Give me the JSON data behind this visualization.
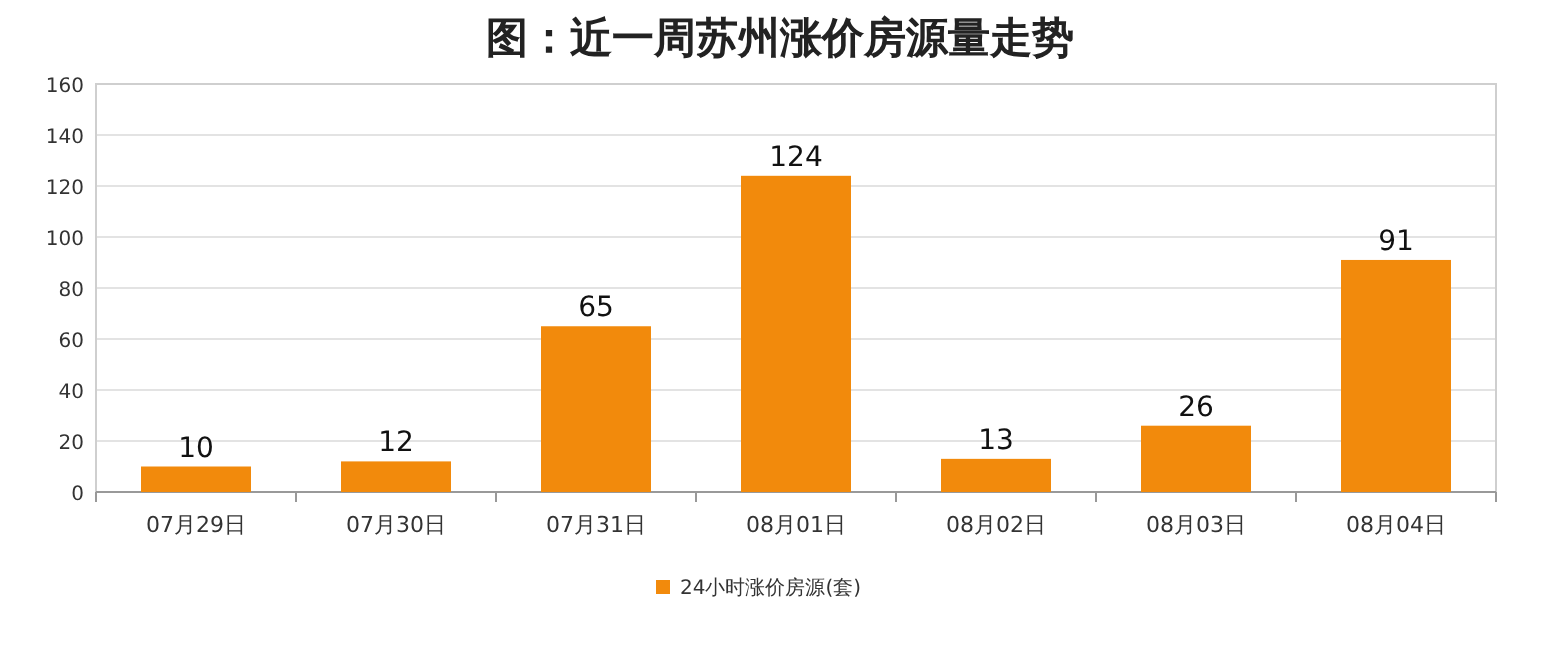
{
  "chart_data": {
    "type": "bar",
    "title": "图：近一周苏州涨价房源量走势",
    "categories": [
      "07月29日",
      "07月30日",
      "07月31日",
      "08月01日",
      "08月02日",
      "08月03日",
      "08月04日"
    ],
    "series": [
      {
        "name": "24小时涨价房源(套)",
        "color": "#f28a0c",
        "values": [
          10,
          12,
          65,
          124,
          13,
          26,
          91
        ]
      }
    ],
    "ylim": [
      0,
      160
    ],
    "yticks": [
      0,
      20,
      40,
      60,
      80,
      100,
      120,
      140,
      160
    ],
    "grid": "y",
    "legend": "bottom",
    "data_labels": true
  }
}
